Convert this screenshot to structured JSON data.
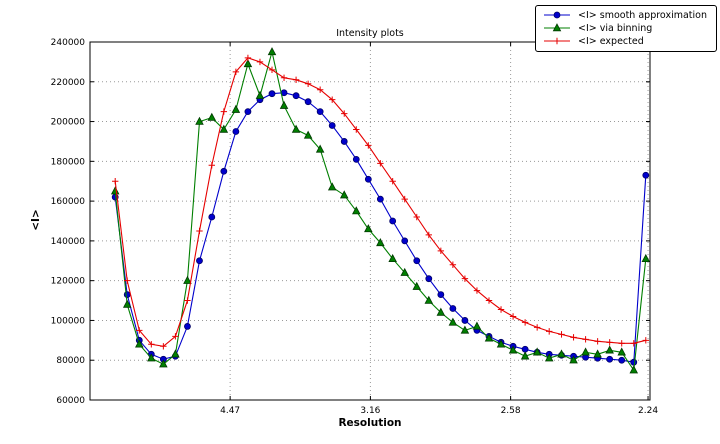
{
  "figure": {
    "background": "#ffffff"
  },
  "chart_data": {
    "type": "line",
    "title": "Intensity plots",
    "xlabel": "Resolution",
    "ylabel": "<I>",
    "legend_position": "upper right, outside plot top",
    "grid": "dotted",
    "x_axis": {
      "note": "positions linear in 1/d^2, tick labels are resolution in Angstrom",
      "range": [
        0.0,
        0.2
      ],
      "ticks": [
        {
          "label": "4.47",
          "value": 0.05005
        },
        {
          "label": "3.16",
          "value": 0.10014
        },
        {
          "label": "2.58",
          "value": 0.15022
        },
        {
          "label": "2.24",
          "value": 0.1993
        }
      ]
    },
    "y_axis": {
      "range": [
        60000,
        240000
      ],
      "ticks": [
        60000,
        80000,
        100000,
        120000,
        140000,
        160000,
        180000,
        200000,
        220000,
        240000
      ]
    },
    "x": [
      0.009,
      0.0133,
      0.0176,
      0.0219,
      0.0262,
      0.0305,
      0.0348,
      0.0391,
      0.0435,
      0.0478,
      0.0521,
      0.0564,
      0.0607,
      0.065,
      0.0693,
      0.0736,
      0.0779,
      0.0822,
      0.0865,
      0.0908,
      0.0951,
      0.0994,
      0.1037,
      0.1081,
      0.1124,
      0.1167,
      0.121,
      0.1253,
      0.1296,
      0.1339,
      0.1382,
      0.1425,
      0.1468,
      0.1511,
      0.1554,
      0.1597,
      0.164,
      0.1684,
      0.1727,
      0.177,
      0.1813,
      0.1856,
      0.1899,
      0.1942,
      0.1985
    ],
    "series": [
      {
        "name": "<I> smooth approximation",
        "color": "#0000cc",
        "edge": "#000066",
        "marker": "circle",
        "values": [
          162000,
          113000,
          90000,
          83000,
          80500,
          82000,
          97000,
          130000,
          152000,
          175000,
          195000,
          205000,
          211000,
          214000,
          214500,
          213000,
          210000,
          205000,
          198000,
          190000,
          181000,
          171000,
          161000,
          150000,
          140000,
          130000,
          121000,
          113000,
          106000,
          100000,
          95000,
          92000,
          89000,
          87000,
          85500,
          84000,
          83000,
          82500,
          82000,
          81500,
          81000,
          80500,
          80000,
          79000,
          173000
        ]
      },
      {
        "name": "<I> via binning",
        "color": "#007f00",
        "edge": "#003800",
        "marker": "triangle",
        "values": [
          165000,
          108000,
          88000,
          81000,
          78000,
          83000,
          120000,
          200000,
          202000,
          196000,
          206000,
          229000,
          213000,
          235000,
          208000,
          196000,
          193000,
          186000,
          167000,
          163000,
          155000,
          146000,
          139000,
          131000,
          124000,
          117000,
          110000,
          104000,
          99000,
          95000,
          97000,
          91000,
          88000,
          85000,
          82000,
          84000,
          81000,
          83000,
          80000,
          84000,
          83000,
          85000,
          84000,
          75000,
          131000
        ]
      },
      {
        "name": "<I> expected",
        "color": "#e60000",
        "edge": "#e60000",
        "marker": "plus",
        "values": [
          170000,
          120000,
          95000,
          88000,
          87000,
          92000,
          110000,
          145000,
          178000,
          205000,
          225000,
          232000,
          230000,
          226000,
          222000,
          221000,
          219000,
          216000,
          211000,
          204000,
          196000,
          188000,
          179000,
          170000,
          161000,
          152000,
          143000,
          135000,
          128000,
          121000,
          115000,
          110000,
          105500,
          102000,
          99000,
          96500,
          94500,
          93000,
          91500,
          90500,
          89500,
          89000,
          88500,
          88500,
          90000
        ]
      }
    ]
  }
}
